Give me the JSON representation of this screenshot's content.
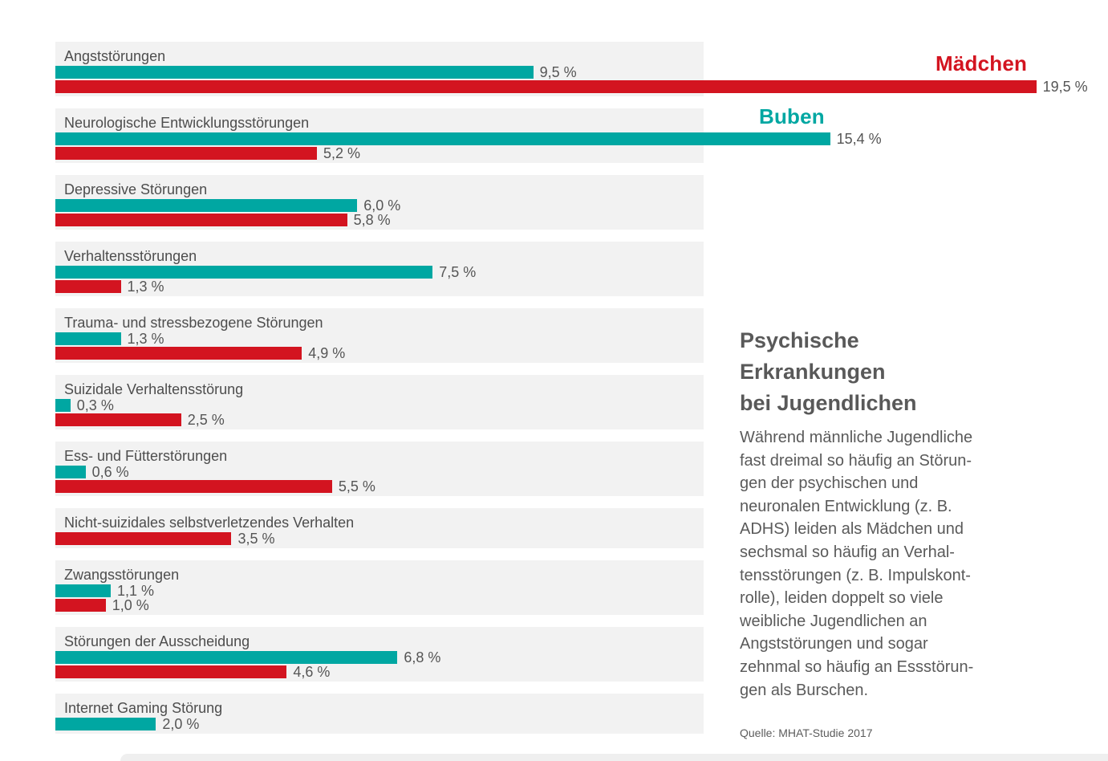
{
  "legend": {
    "girls_label": "Mädchen",
    "boys_label": "Buben"
  },
  "colors": {
    "girls": "#d31420",
    "boys": "#00a7a2",
    "row_bg": "#f2f2f2"
  },
  "panel": {
    "title": "Psychische\nErkrankungen\nbei Jugendlichen",
    "body": "Während männliche Jugendliche\nfast dreimal so häufig an Störun-\ngen der psychischen und\nneuronalen Entwicklung (z. B.\nADHS) leiden als Mädchen und\nsechsmal so häufig an Verhal-\ntensstörungen (z. B. Impulskont-\nrolle), leiden doppelt so viele\nweibliche Jugendlichen an\nAngststörungen und sogar\nzehnmal so häufig an Essstörun-\ngen als Burschen.",
    "source": "Quelle: MHAT-Studie 2017"
  },
  "chart_data": {
    "type": "bar",
    "orientation": "horizontal",
    "unit": "%",
    "title": "Psychische Erkrankungen bei Jugendlichen",
    "xlim": [
      0,
      19.5
    ],
    "grid": false,
    "legend_position": "inline-top-right",
    "categories": [
      "Angststörungen",
      "Neurologische Entwicklungsstörungen",
      "Depressive Störungen",
      "Verhaltensstörungen",
      "Trauma- und stressbezogene Störungen",
      "Suizidale Verhaltensstörung",
      "Ess- und Fütterstörungen",
      "Nicht-suizidales selbstverletzendes Verhalten",
      "Zwangsstörungen",
      "Störungen der Ausscheidung",
      "Internet Gaming Störung"
    ],
    "series": [
      {
        "name": "Buben",
        "color": "#00a7a2",
        "values": [
          9.5,
          15.4,
          6.0,
          7.5,
          1.3,
          0.3,
          0.6,
          null,
          1.1,
          6.8,
          2.0
        ]
      },
      {
        "name": "Mädchen",
        "color": "#d31420",
        "values": [
          19.5,
          5.2,
          5.8,
          1.3,
          4.9,
          2.5,
          5.5,
          3.5,
          1.0,
          4.6,
          null
        ]
      }
    ],
    "rows": [
      {
        "category": "Angststörungen",
        "boys": 9.5,
        "boys_label": "9,5 %",
        "girls": 19.5,
        "girls_label": "19,5 %"
      },
      {
        "category": "Neurologische Entwicklungsstörungen",
        "boys": 15.4,
        "boys_label": "15,4 %",
        "girls": 5.2,
        "girls_label": "5,2 %"
      },
      {
        "category": "Depressive Störungen",
        "boys": 6.0,
        "boys_label": "6,0 %",
        "girls": 5.8,
        "girls_label": "5,8 %"
      },
      {
        "category": "Verhaltensstörungen",
        "boys": 7.5,
        "boys_label": "7,5 %",
        "girls": 1.3,
        "girls_label": "1,3 %"
      },
      {
        "category": "Trauma- und stressbezogene Störungen",
        "boys": 1.3,
        "boys_label": "1,3 %",
        "girls": 4.9,
        "girls_label": "4,9 %"
      },
      {
        "category": "Suizidale Verhaltensstörung",
        "boys": 0.3,
        "boys_label": "0,3 %",
        "girls": 2.5,
        "girls_label": "2,5 %"
      },
      {
        "category": "Ess- und Fütterstörungen",
        "boys": 0.6,
        "boys_label": "0,6 %",
        "girls": 5.5,
        "girls_label": "5,5 %"
      },
      {
        "category": "Nicht-suizidales selbstverletzendes Verhalten",
        "boys": null,
        "boys_label": null,
        "girls": 3.5,
        "girls_label": "3,5 %"
      },
      {
        "category": "Zwangsstörungen",
        "boys": 1.1,
        "boys_label": "1,1 %",
        "girls": 1.0,
        "girls_label": "1,0 %"
      },
      {
        "category": "Störungen der Ausscheidung",
        "boys": 6.8,
        "boys_label": "6,8 %",
        "girls": 4.6,
        "girls_label": "4,6 %"
      },
      {
        "category": "Internet Gaming Störung",
        "boys": 2.0,
        "boys_label": "2,0 %",
        "girls": null,
        "girls_label": null
      }
    ]
  }
}
